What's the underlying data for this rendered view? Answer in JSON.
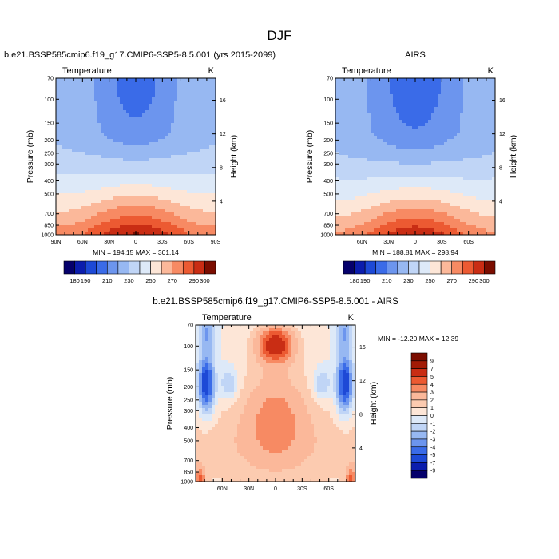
{
  "figure_title": "DJF",
  "chart_data": [
    {
      "type": "heatmap",
      "title": "b.e21.BSSP585cmip6.f19_g17.CMIP6-SSP5-8.5.001 (yrs 2015-2099)",
      "left_label": "Temperature",
      "right_label": "K",
      "ylabel": "Pressure (mb)",
      "ylabel_right": "Height (km)",
      "x_ticks": [
        "90N",
        "60N",
        "30N",
        "0",
        "30S",
        "60S",
        "90S"
      ],
      "x_tick_values": [
        -90,
        -60,
        -30,
        0,
        30,
        60,
        90
      ],
      "xlim": [
        -90,
        90
      ],
      "y_ticks": [
        "70",
        "100",
        "150",
        "200",
        "250",
        "300",
        "400",
        "500",
        "700",
        "850",
        "1000"
      ],
      "y_tick_values": [
        70,
        100,
        150,
        200,
        250,
        300,
        400,
        500,
        700,
        850,
        1000
      ],
      "ylim": [
        70,
        1000
      ],
      "y_scale": "log",
      "height_ticks": [
        "16",
        "12",
        "8",
        "4"
      ],
      "height_tick_values": [
        16,
        12,
        8,
        4
      ],
      "stats": "MIN = 194.15   MAX = 301.14",
      "min": 194.15,
      "max": 301.14,
      "colorbar": {
        "orientation": "horizontal",
        "levels": [
          180,
          190,
          200,
          210,
          220,
          230,
          240,
          250,
          260,
          270,
          280,
          290,
          300
        ],
        "labels": [
          "180",
          "190",
          "210",
          "230",
          "250",
          "270",
          "290",
          "300"
        ],
        "label_values": [
          180,
          190,
          210,
          230,
          250,
          270,
          290,
          300
        ],
        "colors": [
          "#05006b",
          "#0b1dad",
          "#1d49d6",
          "#3a6be8",
          "#6c95ee",
          "#97b8f2",
          "#c0d5f6",
          "#dde9f8",
          "#fde6d7",
          "#fbb89a",
          "#f78a63",
          "#ec5a32",
          "#c92d14",
          "#7b0d00"
        ]
      }
    },
    {
      "type": "heatmap",
      "title": "AIRS",
      "left_label": "Temperature",
      "right_label": "K",
      "ylabel": "Pressure (mb)",
      "ylabel_right": "Height (km)",
      "x_ticks": [
        "60N",
        "30N",
        "0",
        "30S",
        "60S"
      ],
      "x_tick_values": [
        -60,
        -30,
        0,
        30,
        60
      ],
      "xlim": [
        -90,
        90
      ],
      "y_ticks": [
        "70",
        "100",
        "150",
        "200",
        "250",
        "300",
        "400",
        "500",
        "700",
        "850",
        "1000"
      ],
      "y_tick_values": [
        70,
        100,
        150,
        200,
        250,
        300,
        400,
        500,
        700,
        850,
        1000
      ],
      "ylim": [
        70,
        1000
      ],
      "y_scale": "log",
      "height_ticks": [
        "16",
        "12",
        "8",
        "4"
      ],
      "height_tick_values": [
        16,
        12,
        8,
        4
      ],
      "stats": "MIN = 188.81   MAX = 298.94",
      "min": 188.81,
      "max": 298.94,
      "colorbar": {
        "orientation": "horizontal",
        "levels": [
          180,
          190,
          200,
          210,
          220,
          230,
          240,
          250,
          260,
          270,
          280,
          290,
          300
        ],
        "labels": [
          "180",
          "190",
          "210",
          "230",
          "250",
          "270",
          "290",
          "300"
        ],
        "label_values": [
          180,
          190,
          210,
          230,
          250,
          270,
          290,
          300
        ],
        "colors": [
          "#05006b",
          "#0b1dad",
          "#1d49d6",
          "#3a6be8",
          "#6c95ee",
          "#97b8f2",
          "#c0d5f6",
          "#dde9f8",
          "#fde6d7",
          "#fbb89a",
          "#f78a63",
          "#ec5a32",
          "#c92d14",
          "#7b0d00"
        ]
      }
    },
    {
      "type": "heatmap",
      "title": "b.e21.BSSP585cmip6.f19_g17.CMIP6-SSP5-8.5.001 - AIRS",
      "left_label": "Temperature",
      "right_label": "K",
      "ylabel": "Pressure (mb)",
      "ylabel_right": "Height (km)",
      "x_ticks": [
        "60N",
        "30N",
        "0",
        "30S",
        "60S"
      ],
      "x_tick_values": [
        -60,
        -30,
        0,
        30,
        60
      ],
      "xlim": [
        -90,
        90
      ],
      "y_ticks": [
        "70",
        "100",
        "150",
        "200",
        "250",
        "300",
        "400",
        "500",
        "700",
        "850",
        "1000"
      ],
      "y_tick_values": [
        70,
        100,
        150,
        200,
        250,
        300,
        400,
        500,
        700,
        850,
        1000
      ],
      "ylim": [
        70,
        1000
      ],
      "y_scale": "log",
      "height_ticks": [
        "16",
        "12",
        "8",
        "4"
      ],
      "height_tick_values": [
        16,
        12,
        8,
        4
      ],
      "stats": "MIN = -12.20   MAX =  12.39",
      "min": -12.2,
      "max": 12.39,
      "colorbar": {
        "orientation": "vertical",
        "levels": [
          -9,
          -7,
          -5,
          -4,
          -3,
          -2,
          -1,
          0,
          1,
          2,
          3,
          4,
          5,
          7,
          9
        ],
        "labels": [
          "9",
          "7",
          "5",
          "4",
          "3",
          "2",
          "1",
          "0",
          "-1",
          "-2",
          "-3",
          "-4",
          "-5",
          "-7",
          "-9"
        ],
        "colors": [
          "#05006b",
          "#0b1dad",
          "#1d49d6",
          "#3a6be8",
          "#6c95ee",
          "#97b8f2",
          "#c0d5f6",
          "#dde9f8",
          "#fde6d7",
          "#fccbb0",
          "#fbb89a",
          "#f78a63",
          "#ec5a32",
          "#c92d14",
          "#a31b06",
          "#7b0d00"
        ]
      }
    }
  ]
}
